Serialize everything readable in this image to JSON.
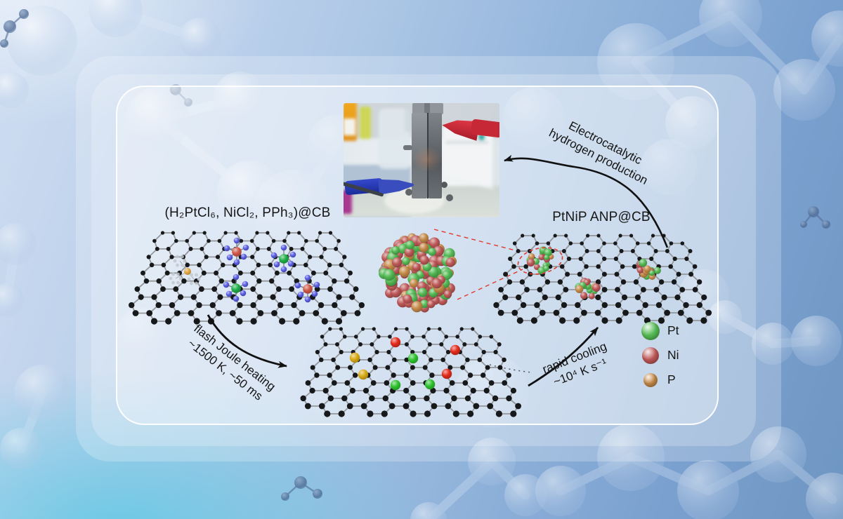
{
  "figure": {
    "precursor_label": "(H₂PtCl₆, NiCl₂, PPh₃)@CB",
    "product_label": "PtNiP ANP@CB",
    "electro_arrow": {
      "line1": "Electrocatalytic",
      "line2": "hydrogen production"
    },
    "flash_arrow": {
      "line1": "flash Joule heating",
      "line2": "~1500 K, ~50 ms"
    },
    "cooling_arrow": {
      "line1": "rapid cooling",
      "line2": "~10⁴ K s⁻¹"
    },
    "legend": {
      "pt": {
        "label": "Pt",
        "color": "#53b953"
      },
      "ni": {
        "label": "Ni",
        "color": "#bd5757"
      },
      "p": {
        "label": "P",
        "color": "#c58a49"
      }
    },
    "callout_color": "#e0392e",
    "arrow_color": "#111111"
  }
}
